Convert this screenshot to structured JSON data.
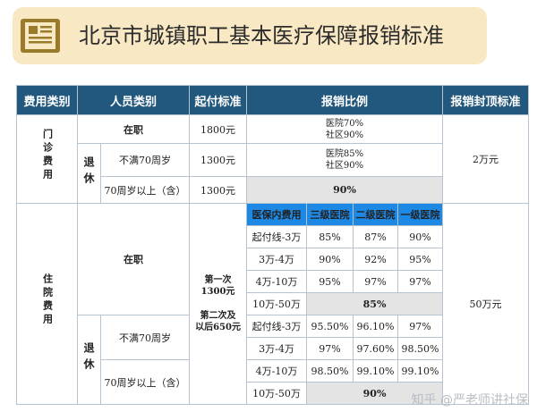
{
  "title": "北京市城镇职工基本医疗保障报销标准",
  "header": [
    "费用类别",
    "人员类别",
    "起付标准",
    "报销比例",
    "报销封顶标准"
  ],
  "outpatient": {
    "category": "门诊费用",
    "rows": [
      {
        "person": "在职",
        "deductible": "1800元",
        "ratio": [
          "医院70%",
          "社区90%"
        ]
      },
      {
        "person": "不满70周岁",
        "deductible": "1300元",
        "ratio": [
          "医院85%",
          "社区90%"
        ]
      },
      {
        "person": "70周岁以上（含）",
        "deductible": "1300元",
        "ratio": [
          "90%"
        ]
      }
    ],
    "retired_label": "退休",
    "cap": "2万元"
  },
  "inpatient": {
    "category": "住院费用",
    "in_service": "在职",
    "retired_label": "退休",
    "retired_rows": [
      "不满70周岁",
      "70周岁以上（含）"
    ],
    "deductible": [
      "第一次",
      "1300元",
      "第二次及",
      "以后650元"
    ],
    "sub_header": [
      "医保内费用",
      "三级医院",
      "二级医院",
      "一级医院"
    ],
    "ranges_a": [
      {
        "range": "起付线-3万",
        "v": [
          "85%",
          "87%",
          "90%"
        ]
      },
      {
        "range": "3万-4万",
        "v": [
          "90%",
          "92%",
          "95%"
        ]
      },
      {
        "range": "4万-10万",
        "v": [
          "95%",
          "97%",
          "97%"
        ]
      },
      {
        "range": "10万-50万",
        "merged": "85%"
      }
    ],
    "ranges_b": [
      {
        "range": "起付线-3万",
        "v": [
          "95.50%",
          "96.10%",
          "97%"
        ]
      },
      {
        "range": "3万-4万",
        "v": [
          "97%",
          "97.60%",
          "98.50%"
        ]
      },
      {
        "range": "4万-10万",
        "v": [
          "98.50%",
          "99.10%",
          "99.10%"
        ]
      },
      {
        "range": "10万-50万",
        "merged": "90%"
      }
    ],
    "cap": "50万元"
  },
  "watermark": "知乎 @严老师讲社保",
  "colors": {
    "banner": "#f8e9c4",
    "header": "#23587e",
    "sub_header": "#1e88e5",
    "category_text": "#2a86c9",
    "merged_row": "#e4e4e4"
  },
  "icons": [
    "document-icon"
  ]
}
